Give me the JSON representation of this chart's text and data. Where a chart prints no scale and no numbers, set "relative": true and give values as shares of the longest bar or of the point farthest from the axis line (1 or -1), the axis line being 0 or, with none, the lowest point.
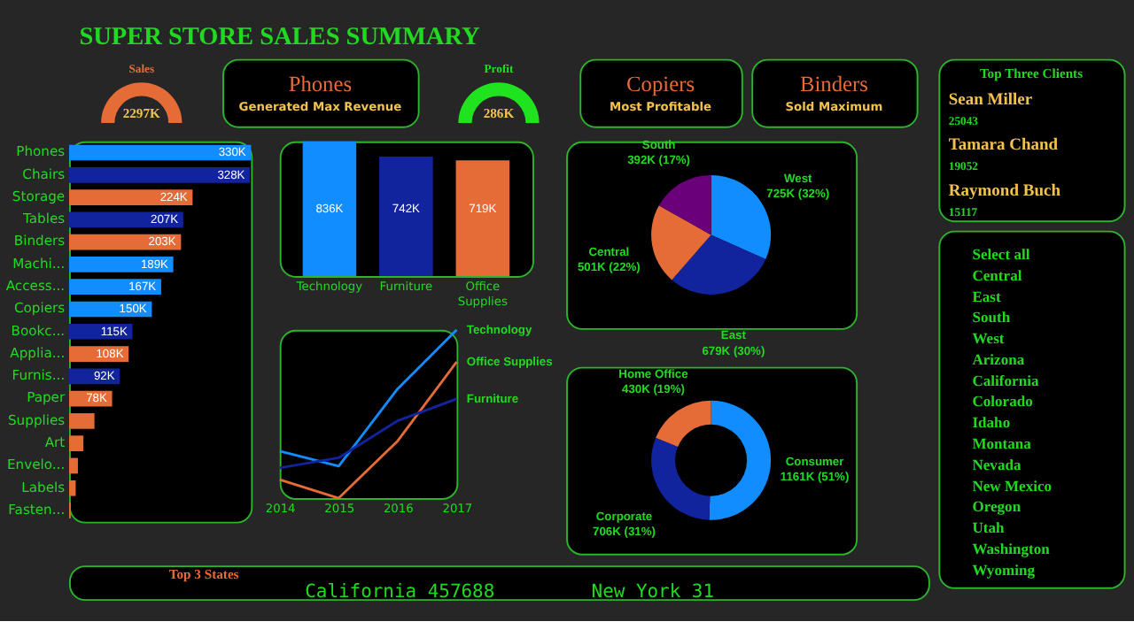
{
  "chart_data": [
    {
      "type": "other",
      "title": "SUPER STORE SALES SUMMARY"
    },
    {
      "type": "pie",
      "title": "Sales",
      "categories": [
        null
      ],
      "values": [
        100
      ],
      "colors": [
        "#e66c37"
      ],
      "annotations": [
        "2297K"
      ]
    },
    {
      "type": "other",
      "title": "Phones",
      "subtitle": "Generated Max Revenue"
    },
    {
      "type": "pie",
      "title": "Profit",
      "categories": [
        null
      ],
      "values": [
        100
      ],
      "colors": [
        "#1ee31e"
      ],
      "annotations": [
        "286K"
      ]
    },
    {
      "type": "other",
      "title": "Copiers",
      "subtitle": "Most Profitable"
    },
    {
      "type": "other",
      "title": "Binders",
      "subtitle": "Sold Maximum"
    },
    {
      "type": "other",
      "title": "Top Three Clients",
      "annotations": [
        "Sean Miller",
        "25043",
        "Tamara Chand",
        "19052",
        "Raymond Buch",
        "15117"
      ]
    },
    {
      "type": "bar",
      "orientation": "horizontal",
      "categories": [
        "Phones",
        "Chairs",
        "Storage",
        "Tables",
        "Binders",
        "Machi...",
        "Access...",
        "Copiers",
        "Bookc...",
        "Applia...",
        "Furnis...",
        "Paper",
        "Supplies",
        "Art",
        "Envelo...",
        "Labels",
        "Fasten..."
      ],
      "values": [
        330,
        328,
        224,
        207,
        203,
        189,
        167,
        150,
        115,
        108,
        92,
        78,
        46,
        26,
        16,
        12,
        3
      ],
      "value_labels": [
        "330K",
        "328K",
        "224K",
        "207K",
        "203K",
        "189K",
        "167K",
        "150K",
        "115K",
        "108K",
        "92K",
        "78K",
        null,
        null,
        null,
        null,
        null
      ],
      "colors": [
        "#118dff",
        "#12239e",
        "#e66c37",
        "#12239e",
        "#e66c37",
        "#118dff",
        "#118dff",
        "#118dff",
        "#12239e",
        "#e66c37",
        "#12239e",
        "#e66c37",
        "#e66c37",
        "#e66c37",
        "#e66c37",
        "#e66c37",
        "#e66c37"
      ]
    },
    {
      "type": "bar",
      "categories": [
        "Technology",
        "Furniture",
        "Office Supplies"
      ],
      "values": [
        836,
        742,
        719
      ],
      "value_labels": [
        "836K",
        "742K",
        "719K"
      ],
      "colors": [
        "#118dff",
        "#12239e",
        "#e66c37"
      ]
    },
    {
      "type": "line",
      "relative": true,
      "x": [
        2014,
        2015,
        2016,
        2017
      ],
      "xlim": [
        2014,
        2017
      ],
      "xticks": [
        2014,
        2015,
        2016,
        2017
      ],
      "series": [
        {
          "name": "Technology",
          "color": "#118dff",
          "values": [
            0.28,
            0.19,
            0.65,
            1
          ]
        },
        {
          "name": "Office Supplies",
          "color": "#e66c37",
          "values": [
            0.11,
            0,
            0.34,
            0.81
          ]
        },
        {
          "name": "Furniture",
          "color": "#12239e",
          "values": [
            0.18,
            0.24,
            0.46,
            0.59
          ]
        }
      ]
    },
    {
      "type": "pie",
      "categories": [
        "West",
        "East",
        "Central",
        "South"
      ],
      "values": [
        32,
        30,
        22,
        17
      ],
      "value_labels": [
        "725K (32%)",
        "679K (30%)",
        "501K (22%)",
        "392K (17%)"
      ],
      "colors": [
        "#118dff",
        "#12239e",
        "#e66c37",
        "#6b007b"
      ]
    },
    {
      "type": "donut",
      "categories": [
        "Consumer",
        "Corporate",
        "Home Office"
      ],
      "values": [
        51,
        31,
        19
      ],
      "value_labels": [
        "1161K (51%)",
        "706K (31%)",
        "430K (19%)"
      ],
      "colors": [
        "#118dff",
        "#12239e",
        "#e66c37"
      ]
    },
    {
      "type": "other",
      "annotations": [
        "Select all",
        "Central",
        "East",
        "South",
        "West",
        "Arizona",
        "California",
        "Colorado",
        "Idaho",
        "Montana",
        "Nevada",
        "New Mexico",
        "Oregon",
        "Utah",
        "Washington",
        "Wyoming"
      ]
    },
    {
      "type": "other",
      "title": "Top 3 States",
      "annotations": [
        "California 457688",
        "New York 31"
      ]
    }
  ]
}
